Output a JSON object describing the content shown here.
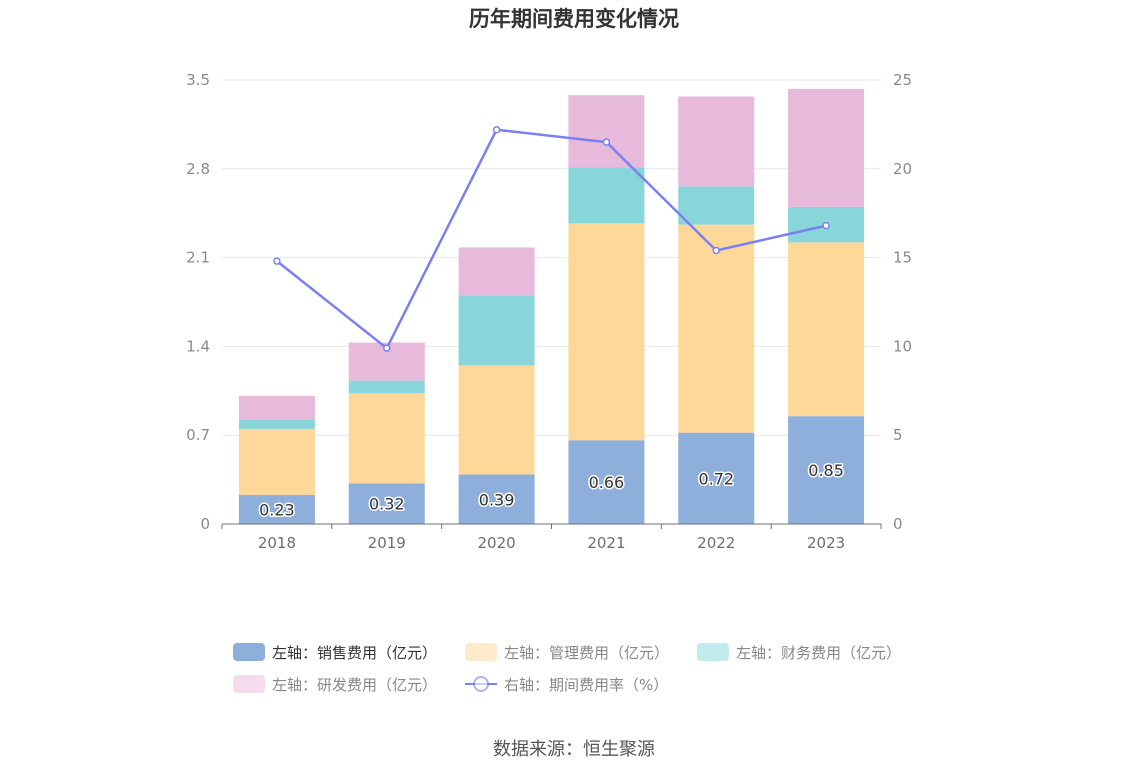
{
  "chart_data": {
    "type": "bar",
    "stacked": true,
    "title": "历年期间费用变化情况",
    "categories": [
      "2018",
      "2019",
      "2020",
      "2021",
      "2022",
      "2023"
    ],
    "y_left": {
      "ylim": [
        0,
        3.5
      ],
      "ticks": [
        "0",
        "0.7",
        "1.4",
        "2.1",
        "2.8",
        "3.5"
      ]
    },
    "y_right": {
      "ylim": [
        0,
        25
      ],
      "ticks": [
        "0",
        "5",
        "10",
        "15",
        "20",
        "25"
      ]
    },
    "grid": true,
    "legend_position": "bottom",
    "series": [
      {
        "name": "左轴：销售费用（亿元）",
        "type": "bar",
        "axis": "left",
        "color": "#8eaedc",
        "values": [
          0.23,
          0.32,
          0.39,
          0.66,
          0.72,
          0.85
        ],
        "labels": [
          "0.23",
          "0.32",
          "0.39",
          "0.66",
          "0.72",
          "0.85"
        ]
      },
      {
        "name": "左轴：管理费用（亿元）",
        "type": "bar",
        "axis": "left",
        "color": "#fed898",
        "values": [
          0.52,
          0.71,
          0.86,
          1.71,
          1.64,
          1.37
        ]
      },
      {
        "name": "左轴：财务费用（亿元）",
        "type": "bar",
        "axis": "left",
        "color": "#88d5da",
        "values": [
          0.07,
          0.1,
          0.55,
          0.44,
          0.3,
          0.28
        ]
      },
      {
        "name": "左轴：研发费用（亿元）",
        "type": "bar",
        "axis": "left",
        "color": "#e7b9da",
        "values": [
          0.19,
          0.3,
          0.38,
          0.57,
          0.71,
          0.93
        ]
      },
      {
        "name": "右轴：期间费用率（%）",
        "type": "line",
        "axis": "right",
        "color": "#7b80f0",
        "values": [
          14.8,
          9.9,
          22.2,
          21.5,
          15.4,
          16.8
        ]
      }
    ]
  },
  "source": "数据来源：恒生聚源"
}
